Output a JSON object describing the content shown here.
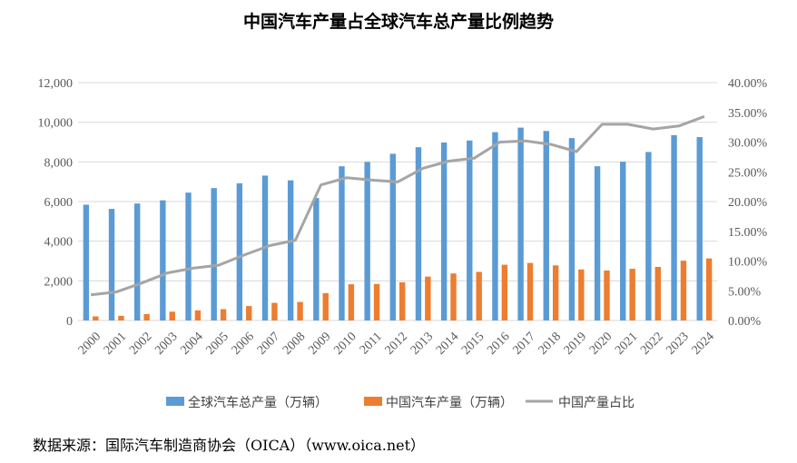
{
  "chart_data": {
    "type": "bar",
    "title": "中国汽车产量占全球汽车总产量比例趋势",
    "categories": [
      "2000",
      "2001",
      "2002",
      "2003",
      "2004",
      "2005",
      "2006",
      "2007",
      "2008",
      "2009",
      "2010",
      "2011",
      "2012",
      "2013",
      "2014",
      "2015",
      "2016",
      "2017",
      "2018",
      "2019",
      "2020",
      "2021",
      "2022",
      "2023",
      "2024"
    ],
    "series": [
      {
        "name": "全球汽车总产量（万辆）",
        "type": "bar",
        "axis": "left",
        "color": "#5B9BD5",
        "values": [
          5840,
          5630,
          5900,
          6060,
          6450,
          6680,
          6920,
          7310,
          7070,
          6180,
          7780,
          8000,
          8410,
          8740,
          8980,
          9080,
          9500,
          9730,
          9560,
          9200,
          7780,
          8010,
          8500,
          9350,
          9250
        ]
      },
      {
        "name": "中国汽车产量（万辆）",
        "type": "bar",
        "axis": "left",
        "color": "#ED7D31",
        "values": [
          207,
          234,
          325,
          444,
          507,
          571,
          728,
          888,
          935,
          1379,
          1827,
          1842,
          1927,
          2212,
          2372,
          2450,
          2812,
          2902,
          2781,
          2572,
          2522,
          2608,
          2702,
          3016,
          3128
        ]
      },
      {
        "name": "中国产量占比",
        "type": "line",
        "axis": "right",
        "color": "#A5A5A5",
        "values": [
          4.3,
          4.8,
          6.3,
          8.0,
          8.8,
          9.3,
          11.0,
          12.6,
          13.5,
          22.8,
          24.0,
          23.6,
          23.3,
          25.6,
          26.8,
          27.3,
          30.0,
          30.2,
          29.6,
          28.4,
          33.0,
          33.0,
          32.2,
          32.7,
          34.3
        ]
      }
    ],
    "y_left": {
      "min": 0,
      "max": 12000,
      "step": 2000,
      "tick_labels": [
        "0",
        "2,000",
        "4,000",
        "6,000",
        "8,000",
        "10,000",
        "12,000"
      ]
    },
    "y_right": {
      "min": 0,
      "max": 40,
      "step": 5,
      "tick_labels": [
        "0.00%",
        "5.00%",
        "10.00%",
        "15.00%",
        "20.00%",
        "25.00%",
        "30.00%",
        "35.00%",
        "40.00%"
      ]
    },
    "grid": true,
    "legend_position": "bottom"
  },
  "source_note": "数据来源：国际汽车制造商协会（OICA）（www.oica.net）"
}
